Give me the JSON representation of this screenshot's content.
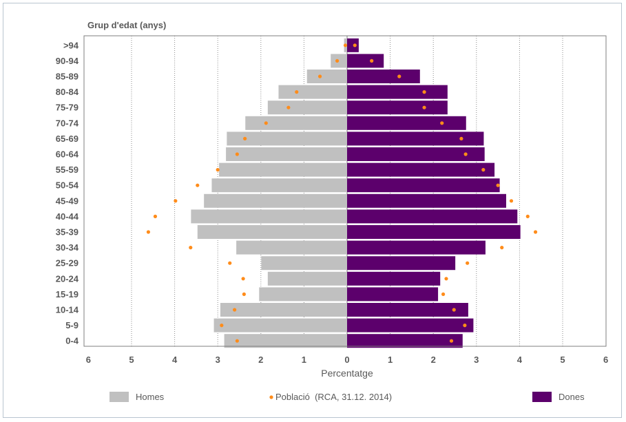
{
  "chart_data": {
    "type": "bar",
    "subtype": "population-pyramid",
    "title": "",
    "ylabel": "Grup d'edat (anys)",
    "xlabel": "Percentatge",
    "xlim": [
      -6,
      6
    ],
    "x_ticks": [
      6,
      5,
      4,
      3,
      2,
      1,
      0,
      1,
      2,
      3,
      4,
      5,
      6
    ],
    "grid": "vertical dotted",
    "categories": [
      ">94",
      "90-94",
      "85-89",
      "80-84",
      "75-79",
      "70-74",
      "65-69",
      "60-64",
      "55-59",
      "50-54",
      "45-49",
      "40-44",
      "35-39",
      "30-34",
      "25-29",
      "20-24",
      "15-19",
      "10-14",
      "5-9",
      "0-4"
    ],
    "series": [
      {
        "name": "Homes",
        "color": "#c0c0c0",
        "side": "left",
        "values": [
          0.07,
          0.38,
          0.93,
          1.59,
          1.84,
          2.36,
          2.79,
          2.81,
          2.97,
          3.14,
          3.32,
          3.62,
          3.47,
          2.57,
          1.99,
          1.84,
          2.04,
          2.94,
          3.09,
          2.85
        ]
      },
      {
        "name": "Dones",
        "color": "#5c006c",
        "side": "right",
        "values": [
          0.27,
          0.85,
          1.69,
          2.33,
          2.33,
          2.76,
          3.17,
          3.19,
          3.42,
          3.54,
          3.69,
          3.95,
          4.02,
          3.21,
          2.51,
          2.16,
          2.11,
          2.81,
          2.93,
          2.68
        ]
      },
      {
        "name": "Població  (RCA, 31.12. 2014)",
        "type": "scatter",
        "color": "#ff8c1a",
        "left_values": [
          0.04,
          0.23,
          0.63,
          1.17,
          1.36,
          1.88,
          2.37,
          2.55,
          3.0,
          3.47,
          3.98,
          4.45,
          4.61,
          3.63,
          2.72,
          2.41,
          2.39,
          2.61,
          2.91,
          2.55
        ],
        "right_values": [
          0.18,
          0.57,
          1.21,
          1.79,
          1.79,
          2.2,
          2.65,
          2.75,
          3.16,
          3.5,
          3.81,
          4.19,
          4.37,
          3.59,
          2.79,
          2.3,
          2.23,
          2.48,
          2.73,
          2.42
        ]
      }
    ],
    "legend": {
      "position": "bottom",
      "items": [
        {
          "label": "Homes",
          "color": "#c0c0c0",
          "marker": "square"
        },
        {
          "label": "Població  (RCA, 31.12. 2014)",
          "color": "#ff8c1a",
          "marker": "dot"
        },
        {
          "label": "Dones",
          "color": "#5c006c",
          "marker": "square"
        }
      ]
    }
  }
}
